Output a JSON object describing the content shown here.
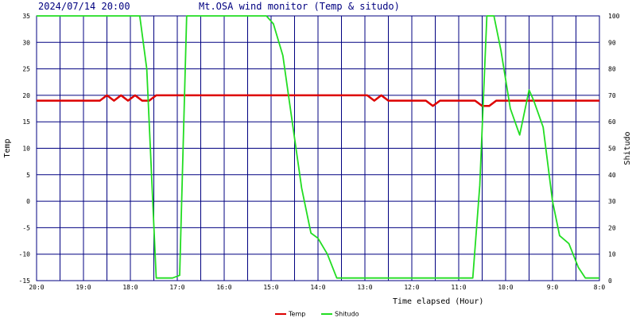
{
  "header": {
    "datetime": "2024/07/14 20:00",
    "title": "Mt.OSA wind monitor (Temp & situdo)"
  },
  "chart_data": {
    "type": "line",
    "title": "Mt.OSA wind monitor (Temp & situdo)",
    "xlabel": "Time elapsed (Hour)",
    "ylabel_left": "Temp",
    "ylabel_right": "Shitudo",
    "x_ticks": [
      "20:0",
      "19:0",
      "18:0",
      "17:0",
      "16:0",
      "15:0",
      "14:0",
      "13:0",
      "12:0",
      "11:0",
      "10:0",
      "9:0",
      "8:0"
    ],
    "xlim_hours_ago": [
      12,
      0
    ],
    "ylim_left": [
      -15,
      35
    ],
    "y_ticks_left": [
      -15,
      -10,
      -5,
      0,
      5,
      10,
      15,
      20,
      25,
      30,
      35
    ],
    "ylim_right": [
      0,
      100
    ],
    "y_ticks_right": [
      0,
      10,
      20,
      30,
      40,
      50,
      60,
      70,
      80,
      90,
      100
    ],
    "grid": true,
    "legend_position": "bottom-center",
    "series": [
      {
        "name": "Temp",
        "axis": "left",
        "color": "#dd0000",
        "points": [
          [
            0,
            19
          ],
          [
            2.2,
            19
          ],
          [
            2.35,
            18
          ],
          [
            2.5,
            18
          ],
          [
            2.65,
            19
          ],
          [
            3.4,
            19
          ],
          [
            3.55,
            18
          ],
          [
            3.7,
            19
          ],
          [
            4.5,
            19
          ],
          [
            4.65,
            20
          ],
          [
            4.8,
            19
          ],
          [
            4.95,
            20
          ],
          [
            9.45,
            20
          ],
          [
            9.6,
            19
          ],
          [
            9.75,
            19
          ],
          [
            9.9,
            20
          ],
          [
            10.05,
            19
          ],
          [
            10.2,
            20
          ],
          [
            10.35,
            19
          ],
          [
            10.5,
            20
          ],
          [
            10.65,
            19
          ],
          [
            12,
            19
          ]
        ]
      },
      {
        "name": "Shitudo",
        "axis": "right",
        "color": "#22dd22",
        "points": [
          [
            0,
            1
          ],
          [
            0.3,
            1
          ],
          [
            0.45,
            5
          ],
          [
            0.65,
            14
          ],
          [
            0.85,
            17
          ],
          [
            1.0,
            30
          ],
          [
            1.2,
            58
          ],
          [
            1.4,
            68
          ],
          [
            1.5,
            72
          ],
          [
            1.7,
            55
          ],
          [
            1.9,
            65
          ],
          [
            2.1,
            87
          ],
          [
            2.25,
            100
          ],
          [
            2.4,
            100
          ],
          [
            2.55,
            36
          ],
          [
            2.7,
            1
          ],
          [
            5.6,
            1
          ],
          [
            5.8,
            10
          ],
          [
            6.0,
            16
          ],
          [
            6.15,
            18
          ],
          [
            6.35,
            35
          ],
          [
            6.55,
            60
          ],
          [
            6.75,
            85
          ],
          [
            6.95,
            97
          ],
          [
            7.1,
            100
          ],
          [
            8.8,
            100
          ],
          [
            8.95,
            2
          ],
          [
            9.1,
            1
          ],
          [
            9.45,
            1
          ],
          [
            9.65,
            80
          ],
          [
            9.8,
            100
          ],
          [
            12,
            100
          ]
        ]
      }
    ]
  }
}
